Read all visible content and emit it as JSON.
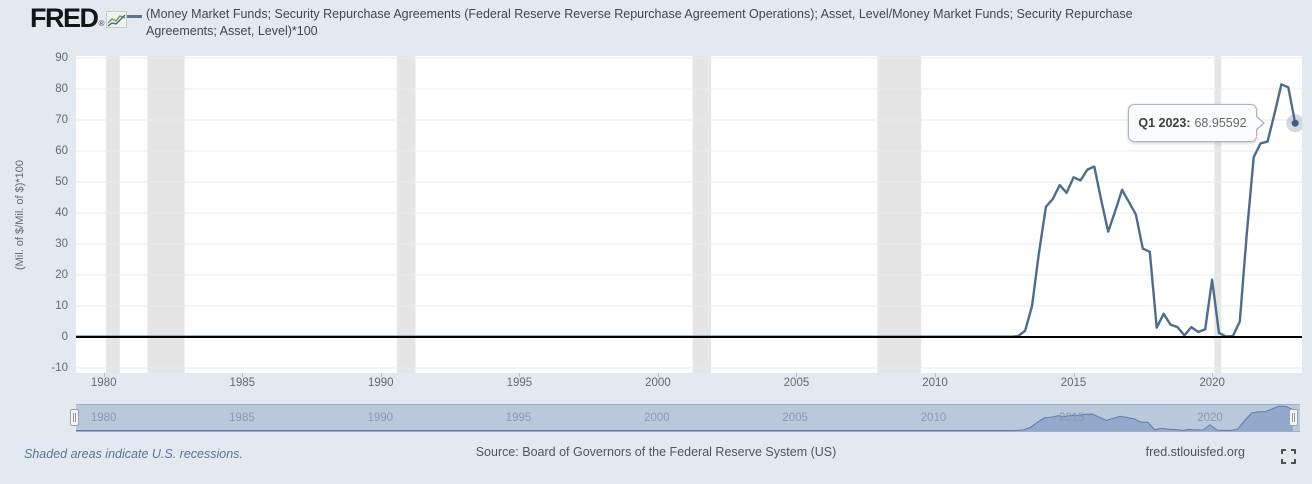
{
  "header": {
    "logo_text": "FRED",
    "logo_registered": "®",
    "series_title_line1": "(Money Market Funds; Security Repurchase Agreements (Federal Reserve Reverse Repurchase Agreement Operations); Asset, Level/Money Market Funds; Security Repurchase",
    "series_title_line2": "Agreements; Asset, Level)*100"
  },
  "tooltip": {
    "label": "Q1 2023:",
    "value": "68.95592"
  },
  "footer": {
    "recession_note": "Shaded areas indicate U.S. recessions.",
    "source": "Source: Board of Governors of the Federal Reserve System (US)",
    "site": "fred.stlouisfed.org"
  },
  "icons": {
    "logo_icon": "line-chart-icon",
    "footer_icon": "fullscreen-expand-icon",
    "nav_handle_icon": "drag-grip-icon"
  },
  "colors": {
    "page_bg": "#e3e9f0",
    "plot_bg": "#ffffff",
    "grid": "#ebebeb",
    "recession_band": "#e5e5e5",
    "zero_line": "#000000",
    "series_line": "#4d6d8e",
    "marker": "#3c5c82",
    "marker_halo": "rgba(77,109,142,0.25)",
    "nav_track": "#bac8dc",
    "nav_border": "#9fafc6",
    "nav_fill": "#92a9cb",
    "nav_line": "#5f7ca8",
    "axis_text": "#5f6b76",
    "nav_text": "#8d99ab",
    "tick_mark": "#b7bec6"
  },
  "chart_data": {
    "type": "line",
    "title": "(Money Market Funds; Security Repurchase Agreements (Federal Reserve Reverse Repurchase Agreement Operations); Asset, Level/Money Market Funds; Security Repurchase Agreements; Asset, Level)*100",
    "xlabel": "",
    "ylabel": "(Mil. of $/Mil. of $)*100",
    "ylim": [
      -10,
      90
    ],
    "x_range": [
      1979,
      2023.25
    ],
    "grid": true,
    "yticks": [
      90,
      80,
      70,
      60,
      50,
      40,
      30,
      20,
      10,
      0,
      -10
    ],
    "xticks": [
      1980,
      1985,
      1990,
      1995,
      2000,
      2005,
      2010,
      2015,
      2020
    ],
    "navigator_labels": [
      1980,
      1985,
      1990,
      1995,
      2000,
      2005,
      2010,
      2015,
      2020
    ],
    "recessions": [
      [
        1980.08,
        1980.58
      ],
      [
        1981.58,
        1982.92
      ],
      [
        1990.58,
        1991.25
      ],
      [
        2001.25,
        2001.92
      ],
      [
        2007.92,
        2009.5
      ],
      [
        2020.08,
        2020.33
      ]
    ],
    "series": [
      {
        "name": "(Money Market Funds; Security Repurchase Agreements (Federal Reserve Reverse Repurchase Agreement Operations); Asset, Level/Money Market Funds; Security Repurchase Agreements; Asset, Level)*100",
        "frequency": "quarterly",
        "points": [
          [
            1979.0,
            0.1
          ],
          [
            2012.75,
            0.1
          ],
          [
            2013.0,
            0.3
          ],
          [
            2013.25,
            2.0
          ],
          [
            2013.5,
            10.0
          ],
          [
            2013.75,
            27.0
          ],
          [
            2014.0,
            42.0
          ],
          [
            2014.25,
            44.5
          ],
          [
            2014.5,
            49.0
          ],
          [
            2014.75,
            46.5
          ],
          [
            2015.0,
            51.5
          ],
          [
            2015.25,
            50.5
          ],
          [
            2015.5,
            54.0
          ],
          [
            2015.75,
            55.0
          ],
          [
            2016.0,
            44.0
          ],
          [
            2016.25,
            34.0
          ],
          [
            2016.5,
            40.5
          ],
          [
            2016.75,
            47.5
          ],
          [
            2017.0,
            43.5
          ],
          [
            2017.25,
            39.5
          ],
          [
            2017.5,
            28.5
          ],
          [
            2017.75,
            27.5
          ],
          [
            2018.0,
            3.0
          ],
          [
            2018.25,
            7.5
          ],
          [
            2018.5,
            4.0
          ],
          [
            2018.75,
            3.2
          ],
          [
            2019.0,
            0.5
          ],
          [
            2019.25,
            3.2
          ],
          [
            2019.5,
            1.6
          ],
          [
            2019.75,
            2.5
          ],
          [
            2020.0,
            18.5
          ],
          [
            2020.25,
            1.3
          ],
          [
            2020.5,
            0.2
          ],
          [
            2020.75,
            0.3
          ],
          [
            2021.0,
            5.0
          ],
          [
            2021.25,
            33.0
          ],
          [
            2021.5,
            58.0
          ],
          [
            2021.75,
            62.5
          ],
          [
            2022.0,
            63.0
          ],
          [
            2022.25,
            72.0
          ],
          [
            2022.5,
            81.5
          ],
          [
            2022.75,
            80.5
          ],
          [
            2023.0,
            68.95592
          ]
        ]
      }
    ],
    "last_point": {
      "period": "Q1 2023",
      "t": 2023.0,
      "value": 68.95592
    },
    "legend_position": "top",
    "notes": "Shaded areas indicate U.S. recessions."
  }
}
